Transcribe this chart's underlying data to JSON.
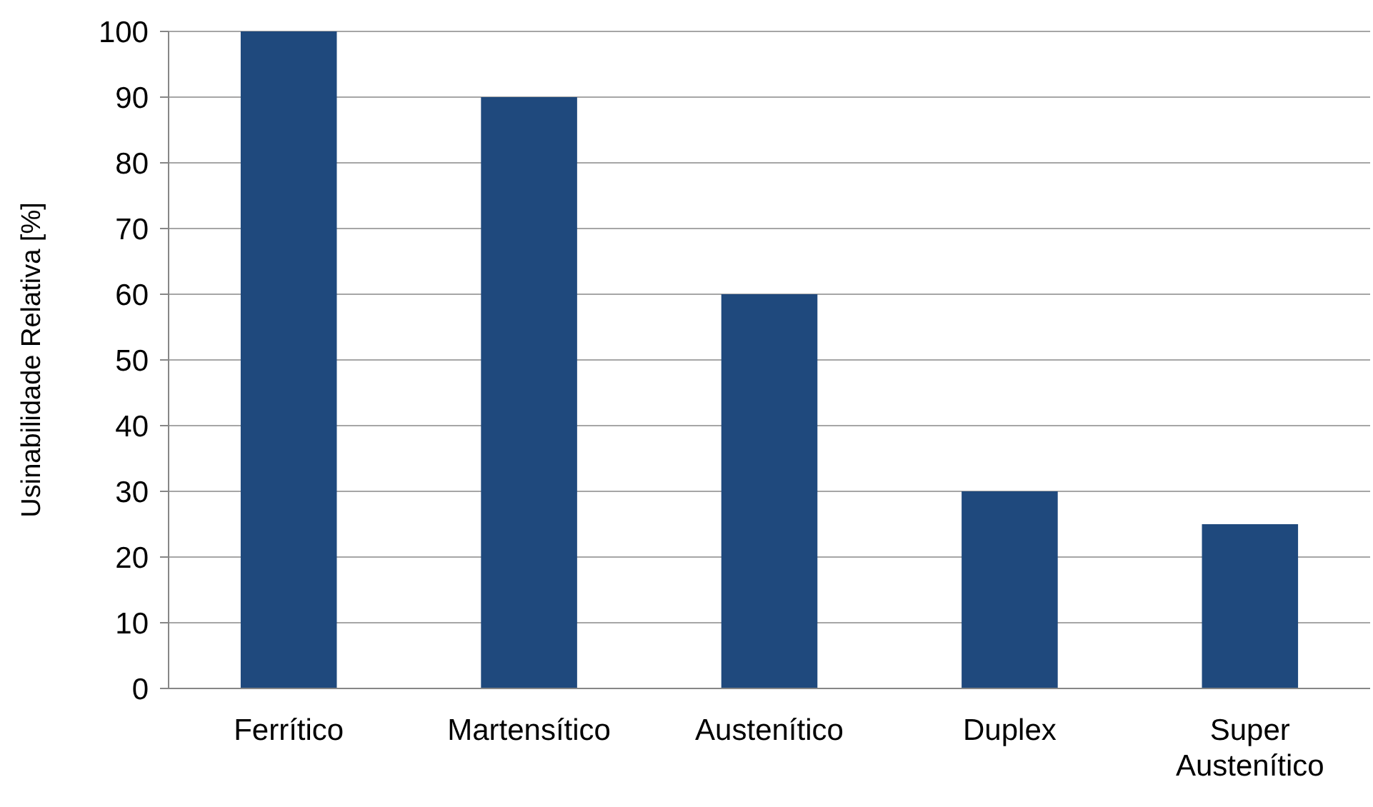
{
  "chart_data": {
    "type": "bar",
    "ylabel": "Usinabilidade Relativa [%]",
    "categories": [
      "Ferrítico",
      "Martensítico",
      "Austenítico",
      "Duplex",
      "Super Austenítico"
    ],
    "values": [
      100,
      90,
      60,
      30,
      25
    ],
    "color": "#1f497d",
    "ylim": [
      0,
      100
    ],
    "yticks": [
      0,
      10,
      20,
      30,
      40,
      50,
      60,
      70,
      80,
      90,
      100
    ],
    "grid": "y"
  }
}
